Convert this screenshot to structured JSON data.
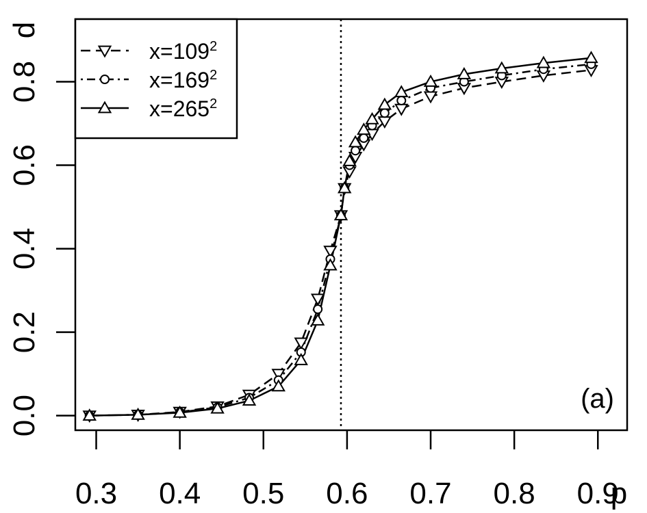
{
  "chart_data": {
    "type": "line",
    "xlabel": "p",
    "ylabel": "d",
    "xlim": [
      0.275,
      0.935
    ],
    "ylim": [
      -0.035,
      0.95
    ],
    "x_ticks": [
      "0.3",
      "0.4",
      "0.5",
      "0.6",
      "0.7",
      "0.8",
      "0.9"
    ],
    "y_ticks": [
      "0.0",
      "0.2",
      "0.4",
      "0.6",
      "0.8"
    ],
    "reference_line": {
      "x": 0.5927,
      "style": "dotted"
    },
    "panel_label": "(a)",
    "legend": {
      "position": "top-left"
    },
    "series": [
      {
        "name": "x=109",
        "superscript": "2",
        "line_style": "dashed",
        "marker": "triangle-down",
        "x": [
          0.292,
          0.35,
          0.4,
          0.445,
          0.483,
          0.518,
          0.545,
          0.565,
          0.58,
          0.5927,
          0.597,
          0.603,
          0.61,
          0.62,
          0.63,
          0.645,
          0.665,
          0.7,
          0.74,
          0.785,
          0.835,
          0.892
        ],
        "y": [
          0.0,
          0.002,
          0.009,
          0.022,
          0.05,
          0.1,
          0.175,
          0.28,
          0.395,
          0.48,
          0.545,
          0.585,
          0.62,
          0.65,
          0.675,
          0.705,
          0.735,
          0.765,
          0.785,
          0.8,
          0.815,
          0.828
        ]
      },
      {
        "name": "x=169",
        "superscript": "2",
        "line_style": "dot-dash",
        "marker": "circle",
        "x": [
          0.292,
          0.35,
          0.4,
          0.445,
          0.483,
          0.518,
          0.545,
          0.565,
          0.58,
          0.5927,
          0.597,
          0.603,
          0.61,
          0.62,
          0.63,
          0.645,
          0.665,
          0.7,
          0.74,
          0.785,
          0.835,
          0.892
        ],
        "y": [
          0.0,
          0.002,
          0.008,
          0.02,
          0.043,
          0.085,
          0.152,
          0.255,
          0.375,
          0.48,
          0.545,
          0.6,
          0.635,
          0.665,
          0.695,
          0.725,
          0.755,
          0.785,
          0.8,
          0.815,
          0.83,
          0.842
        ]
      },
      {
        "name": "x=265",
        "superscript": "2",
        "line_style": "solid",
        "marker": "triangle-up",
        "x": [
          0.292,
          0.35,
          0.4,
          0.445,
          0.483,
          0.518,
          0.545,
          0.565,
          0.58,
          0.5927,
          0.597,
          0.603,
          0.61,
          0.62,
          0.63,
          0.645,
          0.665,
          0.7,
          0.74,
          0.785,
          0.835,
          0.892
        ],
        "y": [
          0.0,
          0.002,
          0.007,
          0.017,
          0.036,
          0.07,
          0.133,
          0.228,
          0.36,
          0.48,
          0.545,
          0.61,
          0.655,
          0.685,
          0.71,
          0.745,
          0.775,
          0.8,
          0.818,
          0.832,
          0.845,
          0.857
        ]
      }
    ]
  }
}
